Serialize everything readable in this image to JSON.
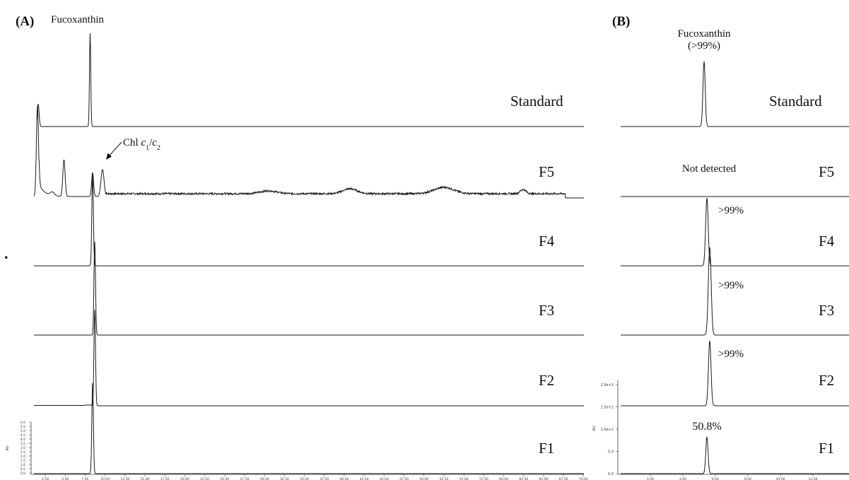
{
  "figure": {
    "panel_a_label": "(A)",
    "panel_b_label": "(B)",
    "stray_mark": "."
  },
  "chart_data": [
    {
      "type": "line",
      "panel": "(A)",
      "traces": [
        {
          "label": "Standard",
          "peaks": [
            {
              "label": "Fucoxanthin"
            }
          ]
        },
        {
          "label": "F5",
          "peaks": [
            {
              "label": "Chl c1/c2",
              "rich": [
                [
                  "Chl ",
                  ""
                ],
                [
                  "c",
                  "it"
                ],
                [
                  "1",
                  "sub"
                ],
                [
                  "/",
                  ""
                ],
                [
                  "c",
                  "it"
                ],
                [
                  "2",
                  "sub"
                ]
              ]
            }
          ]
        },
        {
          "label": "F4"
        },
        {
          "label": "F3"
        },
        {
          "label": "F2"
        },
        {
          "label": "F1"
        }
      ],
      "y_axis": {
        "unit": "AU",
        "ticks": [
          "0.0",
          "0.5",
          "1.0",
          "1.5",
          "2.0",
          "2.5",
          "3.0",
          "3.5",
          "4.0",
          "4.5",
          "5.0",
          "5.5",
          "6.0"
        ]
      },
      "x_axis": {
        "ticks": [
          "2.50",
          "5.00",
          "7.50",
          "10.00",
          "12.50",
          "15.00",
          "17.50",
          "20.00",
          "22.50",
          "25.00",
          "27.50",
          "30.00",
          "32.50",
          "35.00",
          "37.50",
          "40.00",
          "42.50",
          "45.00",
          "47.50",
          "50.00",
          "52.50",
          "55.00",
          "57.50",
          "60.00",
          "62.50",
          "65.00",
          "67.50",
          "70.00"
        ]
      }
    },
    {
      "type": "line",
      "panel": "(B)",
      "traces": [
        {
          "label": "Standard",
          "annotation": [
            "Fucoxanthin",
            "(>99%)"
          ]
        },
        {
          "label": "F5",
          "annotation": [
            "Not detected"
          ]
        },
        {
          "label": "F4",
          "annotation": [
            ">99%"
          ]
        },
        {
          "label": "F3",
          "annotation": [
            ">99%"
          ]
        },
        {
          "label": "F2",
          "annotation": [
            ">99%"
          ]
        },
        {
          "label": "F1",
          "annotation": [
            "50.8%"
          ]
        }
      ],
      "y_axis": {
        "unit": "AU",
        "ticks": [
          "0.0",
          "5.0",
          "1.0e+1",
          "1.5e+1",
          "2.0e+1"
        ]
      },
      "x_axis": {
        "ticks": [
          "2.00",
          "4.00",
          "6.00",
          "8.00",
          "10.00",
          "12.00"
        ]
      }
    }
  ]
}
